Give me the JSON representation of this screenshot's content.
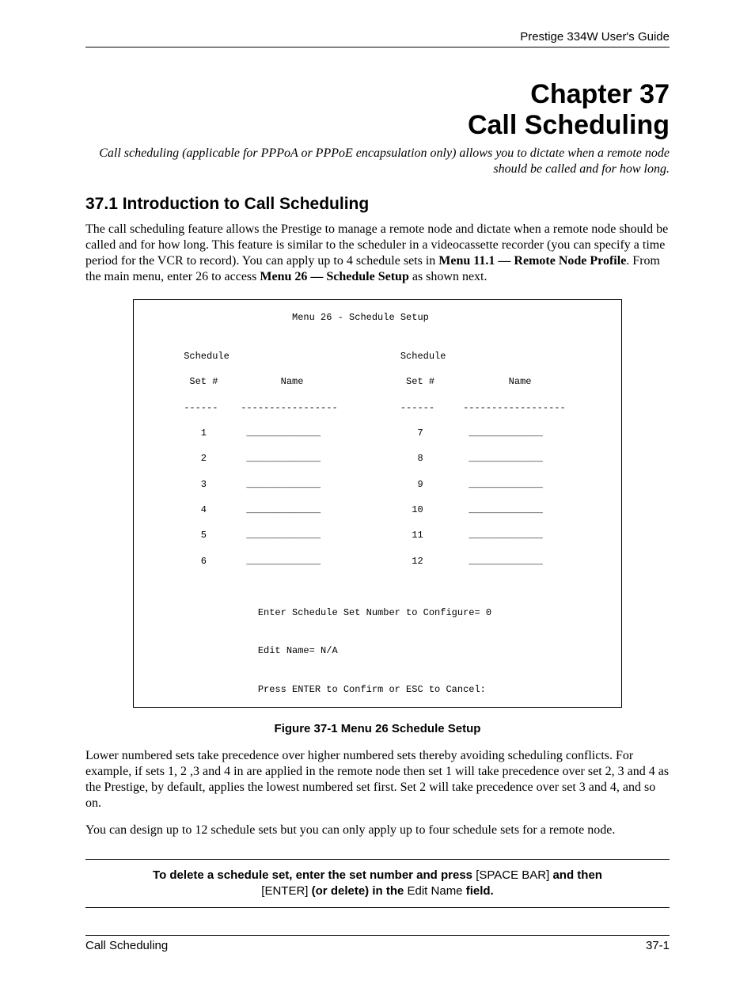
{
  "header": {
    "guide_title": "Prestige 334W User's Guide"
  },
  "chapter": {
    "line1": "Chapter 37",
    "line2": "Call Scheduling",
    "intro_italic": "Call scheduling (applicable for PPPoA or PPPoE encapsulation only) allows you to dictate when a remote node should be called and for how long."
  },
  "section": {
    "heading": "37.1  Introduction to Call Scheduling",
    "p1_part1": "The call scheduling feature allows the Prestige to manage a remote node and dictate when a remote node should be called and for how long. This feature is similar to the scheduler in a videocassette recorder (you can specify a time period for the VCR to record). You can apply up to 4 schedule sets in ",
    "p1_bold1": "Menu 11.1 — Remote Node Profile",
    "p1_part2": ".  From the main menu, enter 26 to access ",
    "p1_bold2": "Menu 26 — Schedule Setup",
    "p1_part3": " as shown next."
  },
  "terminal": {
    "title": "                         Menu 26 - Schedule Setup",
    "hdr1": "      Schedule                              Schedule",
    "hdr2": "       Set #           Name                  Set #             Name",
    "rule": "      ------    -----------------           ------     ------------------",
    "row1": "         1       _____________                 7        _____________",
    "row2": "         2       _____________                 8        _____________",
    "row3": "         3       _____________                 9        _____________",
    "row4": "         4       _____________                10        _____________",
    "row5": "         5       _____________                11        _____________",
    "row6": "         6       _____________                12        _____________",
    "blank": "",
    "prompt1": "                   Enter Schedule Set Number to Configure= 0",
    "prompt2": "                   Edit Name= N/A",
    "prompt3": "                   Press ENTER to Confirm or ESC to Cancel:"
  },
  "figure_caption": "Figure 37-1 Menu 26 Schedule Setup",
  "after": {
    "p2": "Lower numbered sets take precedence over higher numbered sets thereby avoiding scheduling conflicts. For example, if sets 1, 2 ,3 and 4 in are applied in the remote node then set 1 will take precedence over set 2, 3 and 4 as the Prestige, by default, applies the lowest numbered set first.  Set 2 will take precedence over set 3 and 4, and so on.",
    "p3": "You can design up to 12 schedule sets but you can only apply up to four schedule sets for a remote node."
  },
  "note": {
    "b1": "To delete a schedule set, enter the set number and press ",
    "n1": "[SPACE BAR]",
    "b2": " and then ",
    "n2": "[ENTER]",
    "b3": " (or delete) in the ",
    "n3": "Edit Name",
    "b4": " field."
  },
  "footer": {
    "left": "Call Scheduling",
    "right": "37-1"
  }
}
